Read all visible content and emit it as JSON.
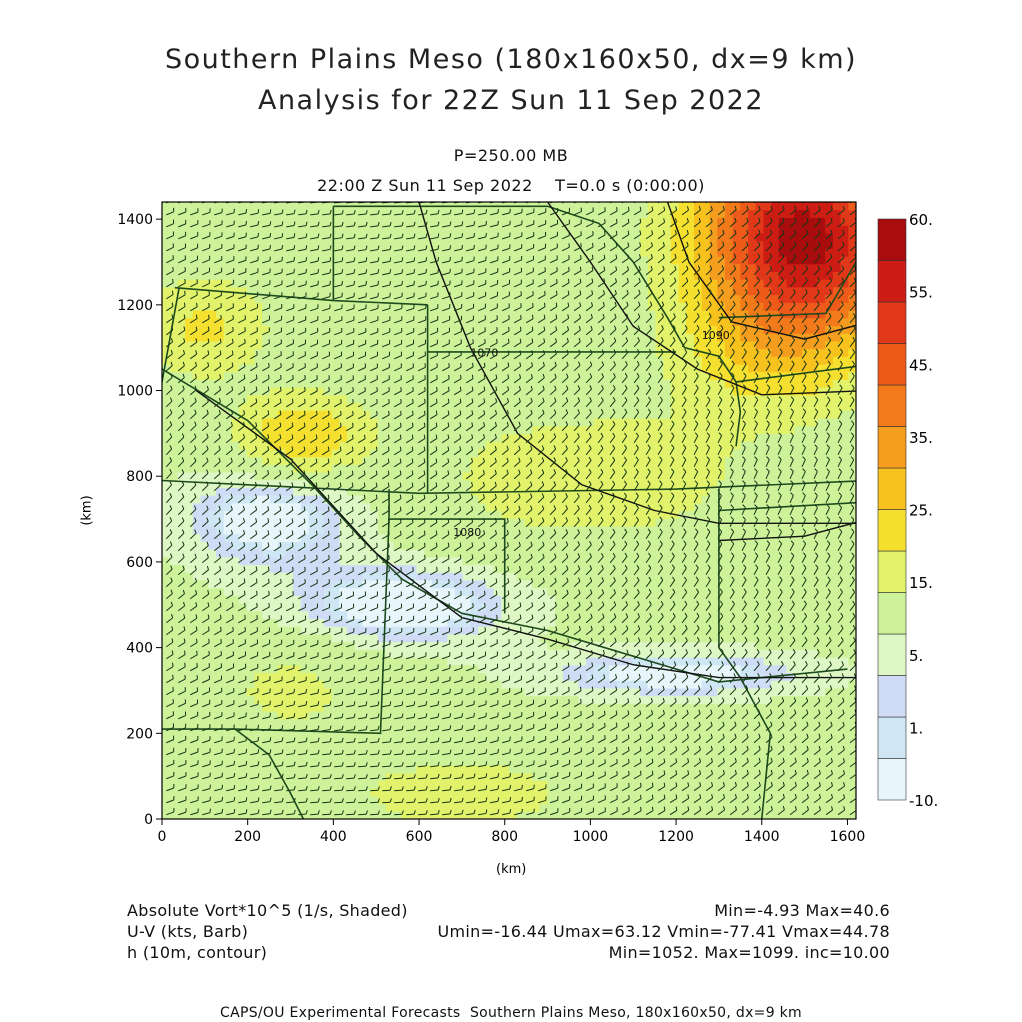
{
  "title_line1": "Southern Plains Meso (180x160x50, dx=9 km)",
  "title_line2": "Analysis for 22Z Sun 11 Sep 2022",
  "level": "P=250.00 MB",
  "valid_time": "22:00 Z Sun 11 Sep 2022    T=0.0 s (0:00:00)",
  "footer": {
    "left": [
      "Absolute Vort*10^5 (1/s, Shaded)",
      "U-V (kts, Barb)",
      "h (10m, contour)"
    ],
    "right": [
      "Min=-4.93 Max=40.6",
      "Umin=-16.44 Umax=63.12 Vmin=-77.41 Vmax=44.78",
      "Min=1052. Max=1099. inc=10.00"
    ],
    "credit": "CAPS/OU Experimental Forecasts  Southern Plains Meso, 180x160x50, dx=9 km"
  },
  "colors": {
    "level_colors": [
      "#e8f6fb",
      "#cfe6f5",
      "#d0dcf5",
      "#def7c5",
      "#cdf29a",
      "#e2f26a",
      "#f5e030",
      "#f7c11e",
      "#f59d1e",
      "#f37a1a",
      "#ee5a1a",
      "#e2381a",
      "#cc1c14",
      "#a80c0c"
    ],
    "border": "#1e4b1e",
    "contour": "#111111",
    "barb": "#163516"
  },
  "chart_data": {
    "type": "heatmap",
    "xlabel": "(km)",
    "ylabel": "(km)",
    "xlim": [
      0,
      1620
    ],
    "ylim": [
      0,
      1440
    ],
    "xticks": [
      0,
      200,
      400,
      600,
      800,
      1000,
      1200,
      1400,
      1600
    ],
    "yticks": [
      0,
      200,
      400,
      600,
      800,
      1000,
      1200,
      1400
    ],
    "colorbar_labels": [
      "-10.",
      "1.",
      "5.",
      "15.",
      "25.",
      "35.",
      "45.",
      "55.",
      "60."
    ],
    "colorbar_levels": [
      -10,
      0,
      1,
      2.5,
      5,
      10,
      15,
      20,
      25,
      30,
      35,
      40,
      45,
      50,
      55,
      60
    ],
    "contour_labels": [
      {
        "text": "1080",
        "x": 680,
        "y": 660
      },
      {
        "text": "1090",
        "x": 1260,
        "y": 1120
      },
      {
        "text": "1070",
        "x": 720,
        "y": 1080
      }
    ],
    "shading_field": [
      {
        "x": 1470,
        "y": 1370,
        "amp": 38,
        "sx": 230,
        "sy": 230
      },
      {
        "x": 1580,
        "y": 1300,
        "amp": 12,
        "sx": 200,
        "sy": 250
      },
      {
        "x": 1380,
        "y": 1080,
        "amp": 8,
        "sx": 200,
        "sy": 150
      },
      {
        "x": 330,
        "y": 900,
        "amp": 14,
        "sx": 150,
        "sy": 90
      },
      {
        "x": 100,
        "y": 1150,
        "amp": 10,
        "sx": 150,
        "sy": 120
      },
      {
        "x": 250,
        "y": 700,
        "amp": -8,
        "sx": 200,
        "sy": 110
      },
      {
        "x": 560,
        "y": 500,
        "amp": -9,
        "sx": 250,
        "sy": 90
      },
      {
        "x": 1200,
        "y": 340,
        "amp": -8,
        "sx": 300,
        "sy": 50
      },
      {
        "x": 700,
        "y": 60,
        "amp": 8,
        "sx": 250,
        "sy": 80
      },
      {
        "x": 1000,
        "y": 800,
        "amp": 8,
        "sx": 350,
        "sy": 150
      },
      {
        "x": 300,
        "y": 300,
        "amp": 5,
        "sx": 200,
        "sy": 130
      }
    ]
  }
}
